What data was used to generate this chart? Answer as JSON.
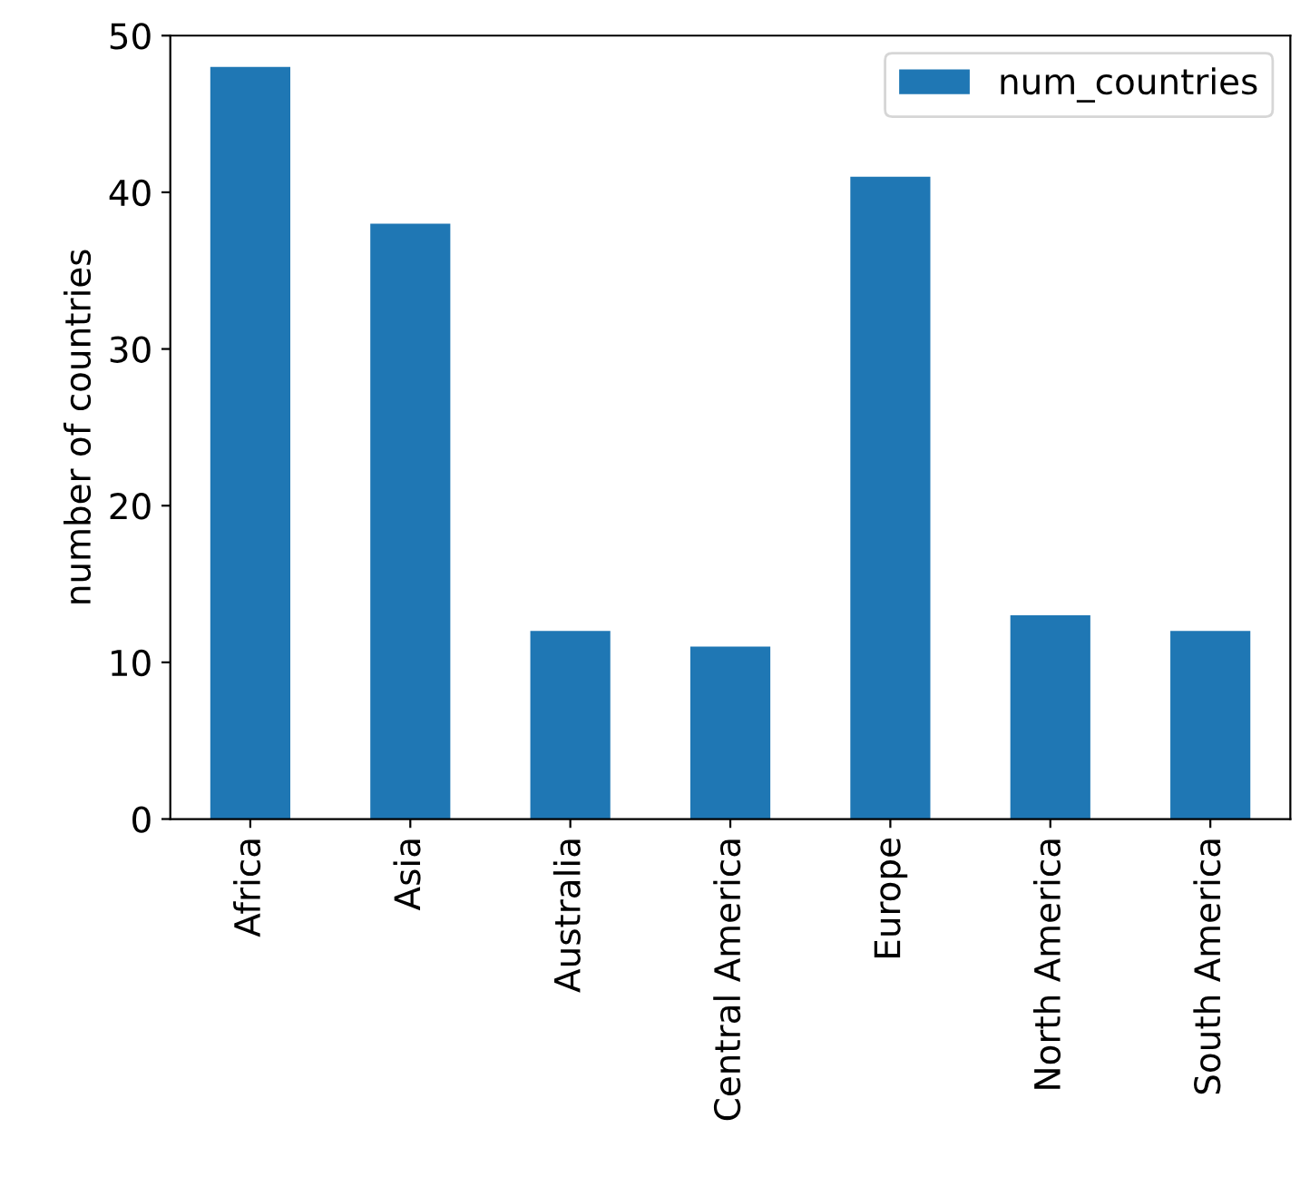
{
  "chart_data": {
    "type": "bar",
    "ylabel": "number of countries",
    "categories": [
      "Africa",
      "Asia",
      "Australia",
      "Central America",
      "Europe",
      "North America",
      "South America"
    ],
    "series": [
      {
        "name": "num_countries",
        "color": "#1f77b4",
        "values": [
          48,
          38,
          12,
          11,
          41,
          13,
          12
        ]
      }
    ],
    "ylim": [
      0,
      50
    ],
    "yticks": [
      0,
      10,
      20,
      30,
      40,
      50
    ],
    "grid": false,
    "legend": "top right"
  }
}
